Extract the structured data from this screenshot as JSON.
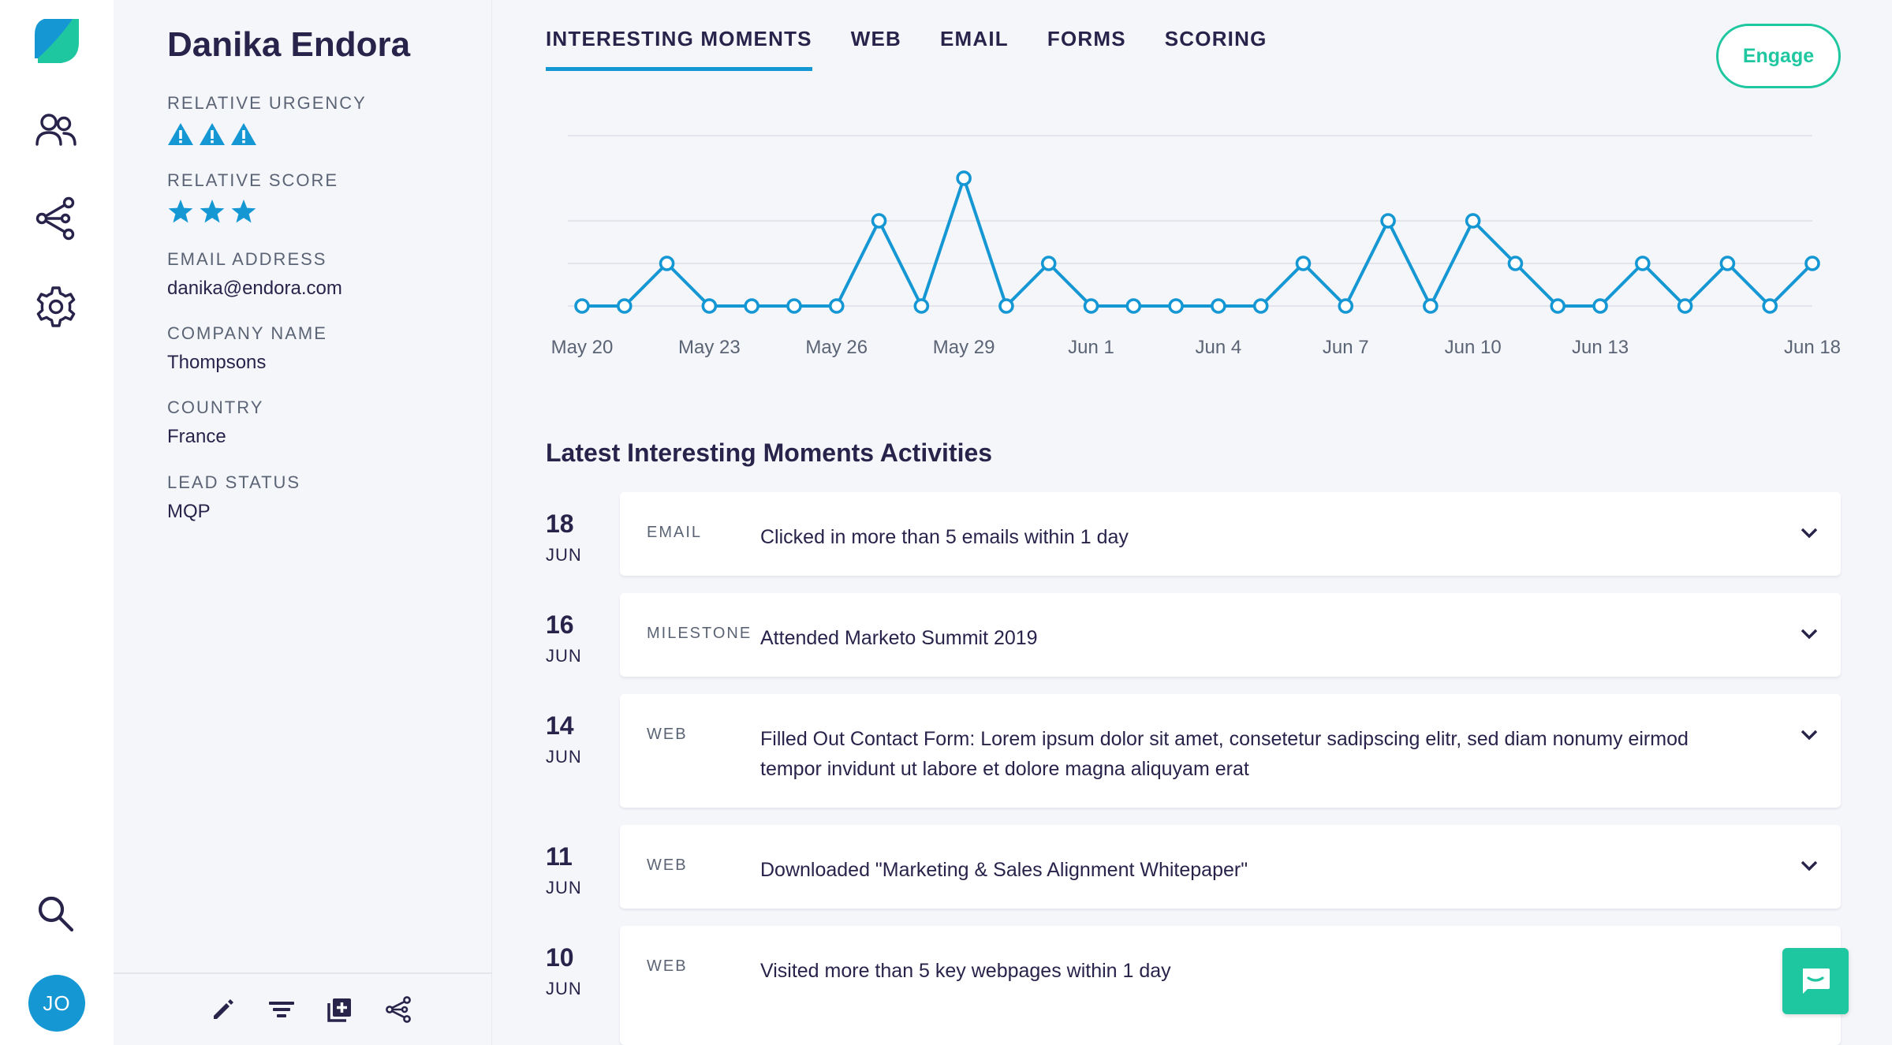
{
  "user": {
    "initials": "JO"
  },
  "nav": [
    {
      "icon": "people-icon"
    },
    {
      "icon": "share-nodes-icon"
    },
    {
      "icon": "gear-icon"
    },
    {
      "icon": "search-icon"
    }
  ],
  "profile": {
    "name": "Danika Endora",
    "urgency": {
      "label": "RELATIVE URGENCY",
      "level": 3
    },
    "score": {
      "label": "RELATIVE SCORE",
      "stars": 3
    },
    "email": {
      "label": "EMAIL ADDRESS",
      "value": "danika@endora.com"
    },
    "company": {
      "label": "COMPANY NAME",
      "value": "Thompsons"
    },
    "country": {
      "label": "COUNTRY",
      "value": "France"
    },
    "lead_status": {
      "label": "LEAD STATUS",
      "value": "MQP"
    },
    "footer_actions": [
      "pencil-icon",
      "filter-icon",
      "add-box-icon",
      "share-nodes-icon"
    ]
  },
  "tabs": [
    {
      "label": "INTERESTING MOMENTS",
      "active": true
    },
    {
      "label": "WEB",
      "active": false
    },
    {
      "label": "EMAIL",
      "active": false
    },
    {
      "label": "FORMS",
      "active": false
    },
    {
      "label": "SCORING",
      "active": false
    }
  ],
  "engage_label": "Engage",
  "colors": {
    "accent": "#1597d4",
    "engage": "#1fc7a0",
    "text": "#27234a",
    "muted": "#5b6475"
  },
  "chart_data": {
    "type": "line",
    "x": [
      "May 20",
      "May 21",
      "May 22",
      "May 23",
      "May 24",
      "May 25",
      "May 26",
      "May 27",
      "May 28",
      "May 29",
      "May 30",
      "May 31",
      "Jun 1",
      "Jun 2",
      "Jun 3",
      "Jun 4",
      "Jun 5",
      "Jun 6",
      "Jun 7",
      "Jun 8",
      "Jun 9",
      "Jun 10",
      "Jun 11",
      "Jun 12",
      "Jun 13",
      "Jun 14",
      "Jun 15",
      "Jun 16",
      "Jun 17",
      "Jun 18"
    ],
    "tick_labels": [
      "May 20",
      "May 23",
      "May 26",
      "May 29",
      "Jun 1",
      "Jun 4",
      "Jun 7",
      "Jun 10",
      "Jun 13",
      "Jun 18"
    ],
    "series": [
      {
        "values": [
          0,
          0,
          1,
          0,
          0,
          0,
          0,
          2,
          0,
          3,
          0,
          1,
          0,
          0,
          0,
          0,
          0,
          1,
          0,
          2,
          0,
          2,
          1,
          0,
          0,
          1,
          0,
          1,
          0,
          1
        ]
      }
    ],
    "ylim": [
      0,
      4
    ],
    "grid": true
  },
  "activities_title": "Latest Interesting Moments Activities",
  "activities": [
    {
      "day": "18",
      "month": "JUN",
      "type": "EMAIL",
      "text": "Clicked in more than 5 emails within 1 day"
    },
    {
      "day": "16",
      "month": "JUN",
      "type": "MILESTONE",
      "text": "Attended Marketo Summit 2019"
    },
    {
      "day": "14",
      "month": "JUN",
      "type": "WEB",
      "text": "Filled Out Contact Form: Lorem ipsum dolor sit amet, consetetur sadipscing elitr, sed diam nonumy eirmod tempor invidunt ut labore et dolore magna aliquyam erat"
    },
    {
      "day": "11",
      "month": "JUN",
      "type": "WEB",
      "text": "Downloaded \"Marketing & Sales Alignment Whitepaper\""
    },
    {
      "day": "10",
      "month": "JUN",
      "type": "WEB",
      "text": "Visited more than 5 key webpages within 1 day"
    }
  ]
}
